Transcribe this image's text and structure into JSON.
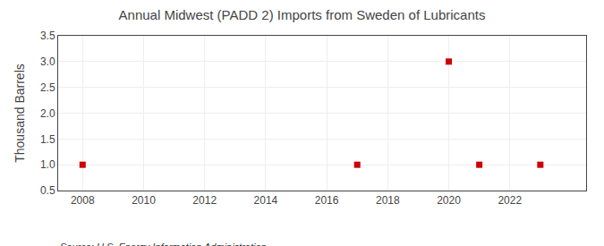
{
  "chart_data": {
    "type": "scatter",
    "title": "Annual Midwest (PADD 2) Imports from Sweden of Lubricants",
    "ylabel": "Thousand Barrels",
    "annotation": "Source: U.S. Energy Information Administration",
    "x": [
      2008,
      2017,
      2020,
      2021,
      2023
    ],
    "values": [
      1,
      1,
      3,
      1,
      1
    ],
    "color": "#cc0000",
    "marker": "square",
    "xlim": [
      2007.2,
      2024.5
    ],
    "ylim": [
      0.5,
      3.5
    ],
    "xticks": [
      2008,
      2010,
      2012,
      2014,
      2016,
      2018,
      2020,
      2022
    ],
    "yticks": [
      0.5,
      {
        "value": 1,
        "label": "1.0"
      },
      1.5,
      {
        "value": 2,
        "label": "2.0"
      },
      2.5,
      {
        "value": 3,
        "label": "3.0"
      },
      3.5
    ],
    "grid": true
  }
}
